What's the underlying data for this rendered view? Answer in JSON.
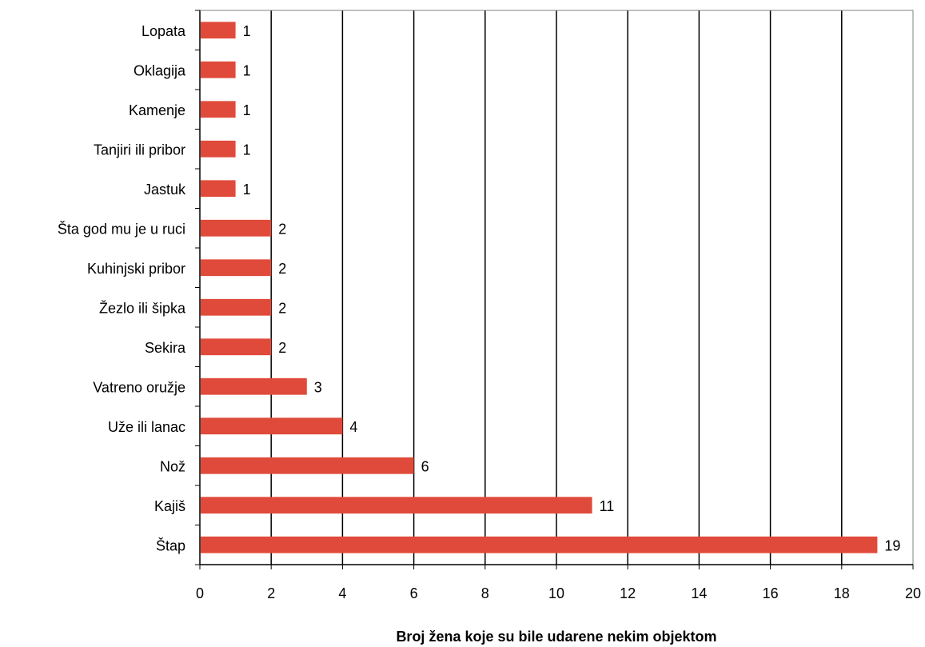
{
  "chart_data": {
    "type": "bar",
    "orientation": "horizontal",
    "categories": [
      "Lopata",
      "Oklagija",
      "Kamenje",
      "Tanjiri ili pribor",
      "Jastuk",
      "Šta god mu je u ruci",
      "Kuhinjski pribor",
      "Žezlo ili šipka",
      "Sekira",
      "Vatreno oružje",
      "Uže ili lanac",
      "Nož",
      "Kajiš",
      "Štap"
    ],
    "values": [
      1,
      1,
      1,
      1,
      1,
      2,
      2,
      2,
      2,
      3,
      4,
      6,
      11,
      19
    ],
    "data_labels": [
      "1",
      "1",
      "1",
      "1",
      "1",
      "2",
      "2",
      "2",
      "2",
      "3",
      "4",
      "6",
      "11",
      "19"
    ],
    "xlabel": "Broj žena koje su bile udarene nekim objektom",
    "ylabel": "",
    "xlim": [
      0,
      20
    ],
    "xticks": [
      0,
      2,
      4,
      6,
      8,
      10,
      12,
      14,
      16,
      18,
      20
    ],
    "xtick_labels": [
      "0",
      "2",
      "4",
      "6",
      "8",
      "10",
      "12",
      "14",
      "16",
      "18",
      "20"
    ],
    "grid": "vertical",
    "legend": "none",
    "colors": {
      "bar": "#e04a3a",
      "grid": "#000000",
      "frame": "#808080",
      "background": "#ffffff"
    }
  }
}
